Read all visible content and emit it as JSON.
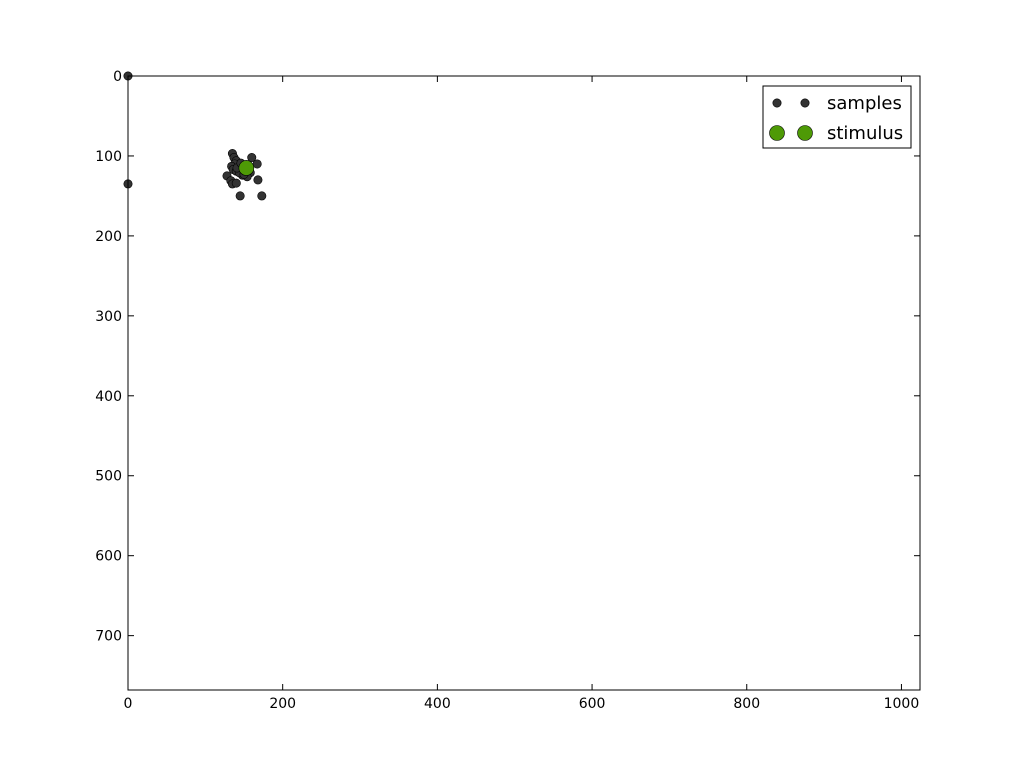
{
  "chart_data": {
    "type": "scatter",
    "title": "",
    "xlabel": "",
    "ylabel": "",
    "xlim": [
      0,
      1024
    ],
    "ylim": [
      768,
      0
    ],
    "y_inverted": true,
    "grid": false,
    "legend_position": "top-right",
    "xticks": [
      0,
      200,
      400,
      600,
      800,
      1000
    ],
    "yticks": [
      0,
      100,
      200,
      300,
      400,
      500,
      600,
      700
    ],
    "series": [
      {
        "name": "samples",
        "color": "#333333",
        "marker": "small-circle",
        "points": [
          [
            0,
            0
          ],
          [
            0,
            135
          ],
          [
            135,
            97
          ],
          [
            137,
            102
          ],
          [
            140,
            106
          ],
          [
            138,
            110
          ],
          [
            134,
            113
          ],
          [
            136,
            117
          ],
          [
            140,
            119
          ],
          [
            143,
            116
          ],
          [
            147,
            113
          ],
          [
            150,
            118
          ],
          [
            152,
            122
          ],
          [
            148,
            124
          ],
          [
            144,
            121
          ],
          [
            141,
            115
          ],
          [
            146,
            109
          ],
          [
            153,
            111
          ],
          [
            156,
            117
          ],
          [
            158,
            121
          ],
          [
            154,
            126
          ],
          [
            150,
            123
          ],
          [
            160,
            102
          ],
          [
            167,
            110
          ],
          [
            128,
            125
          ],
          [
            133,
            131
          ],
          [
            135,
            135
          ],
          [
            140,
            134
          ],
          [
            168,
            130
          ],
          [
            145,
            150
          ],
          [
            173,
            150
          ]
        ]
      },
      {
        "name": "stimulus",
        "color": "#4e9a06",
        "marker": "large-circle",
        "points": [
          [
            153,
            115
          ]
        ]
      }
    ]
  }
}
